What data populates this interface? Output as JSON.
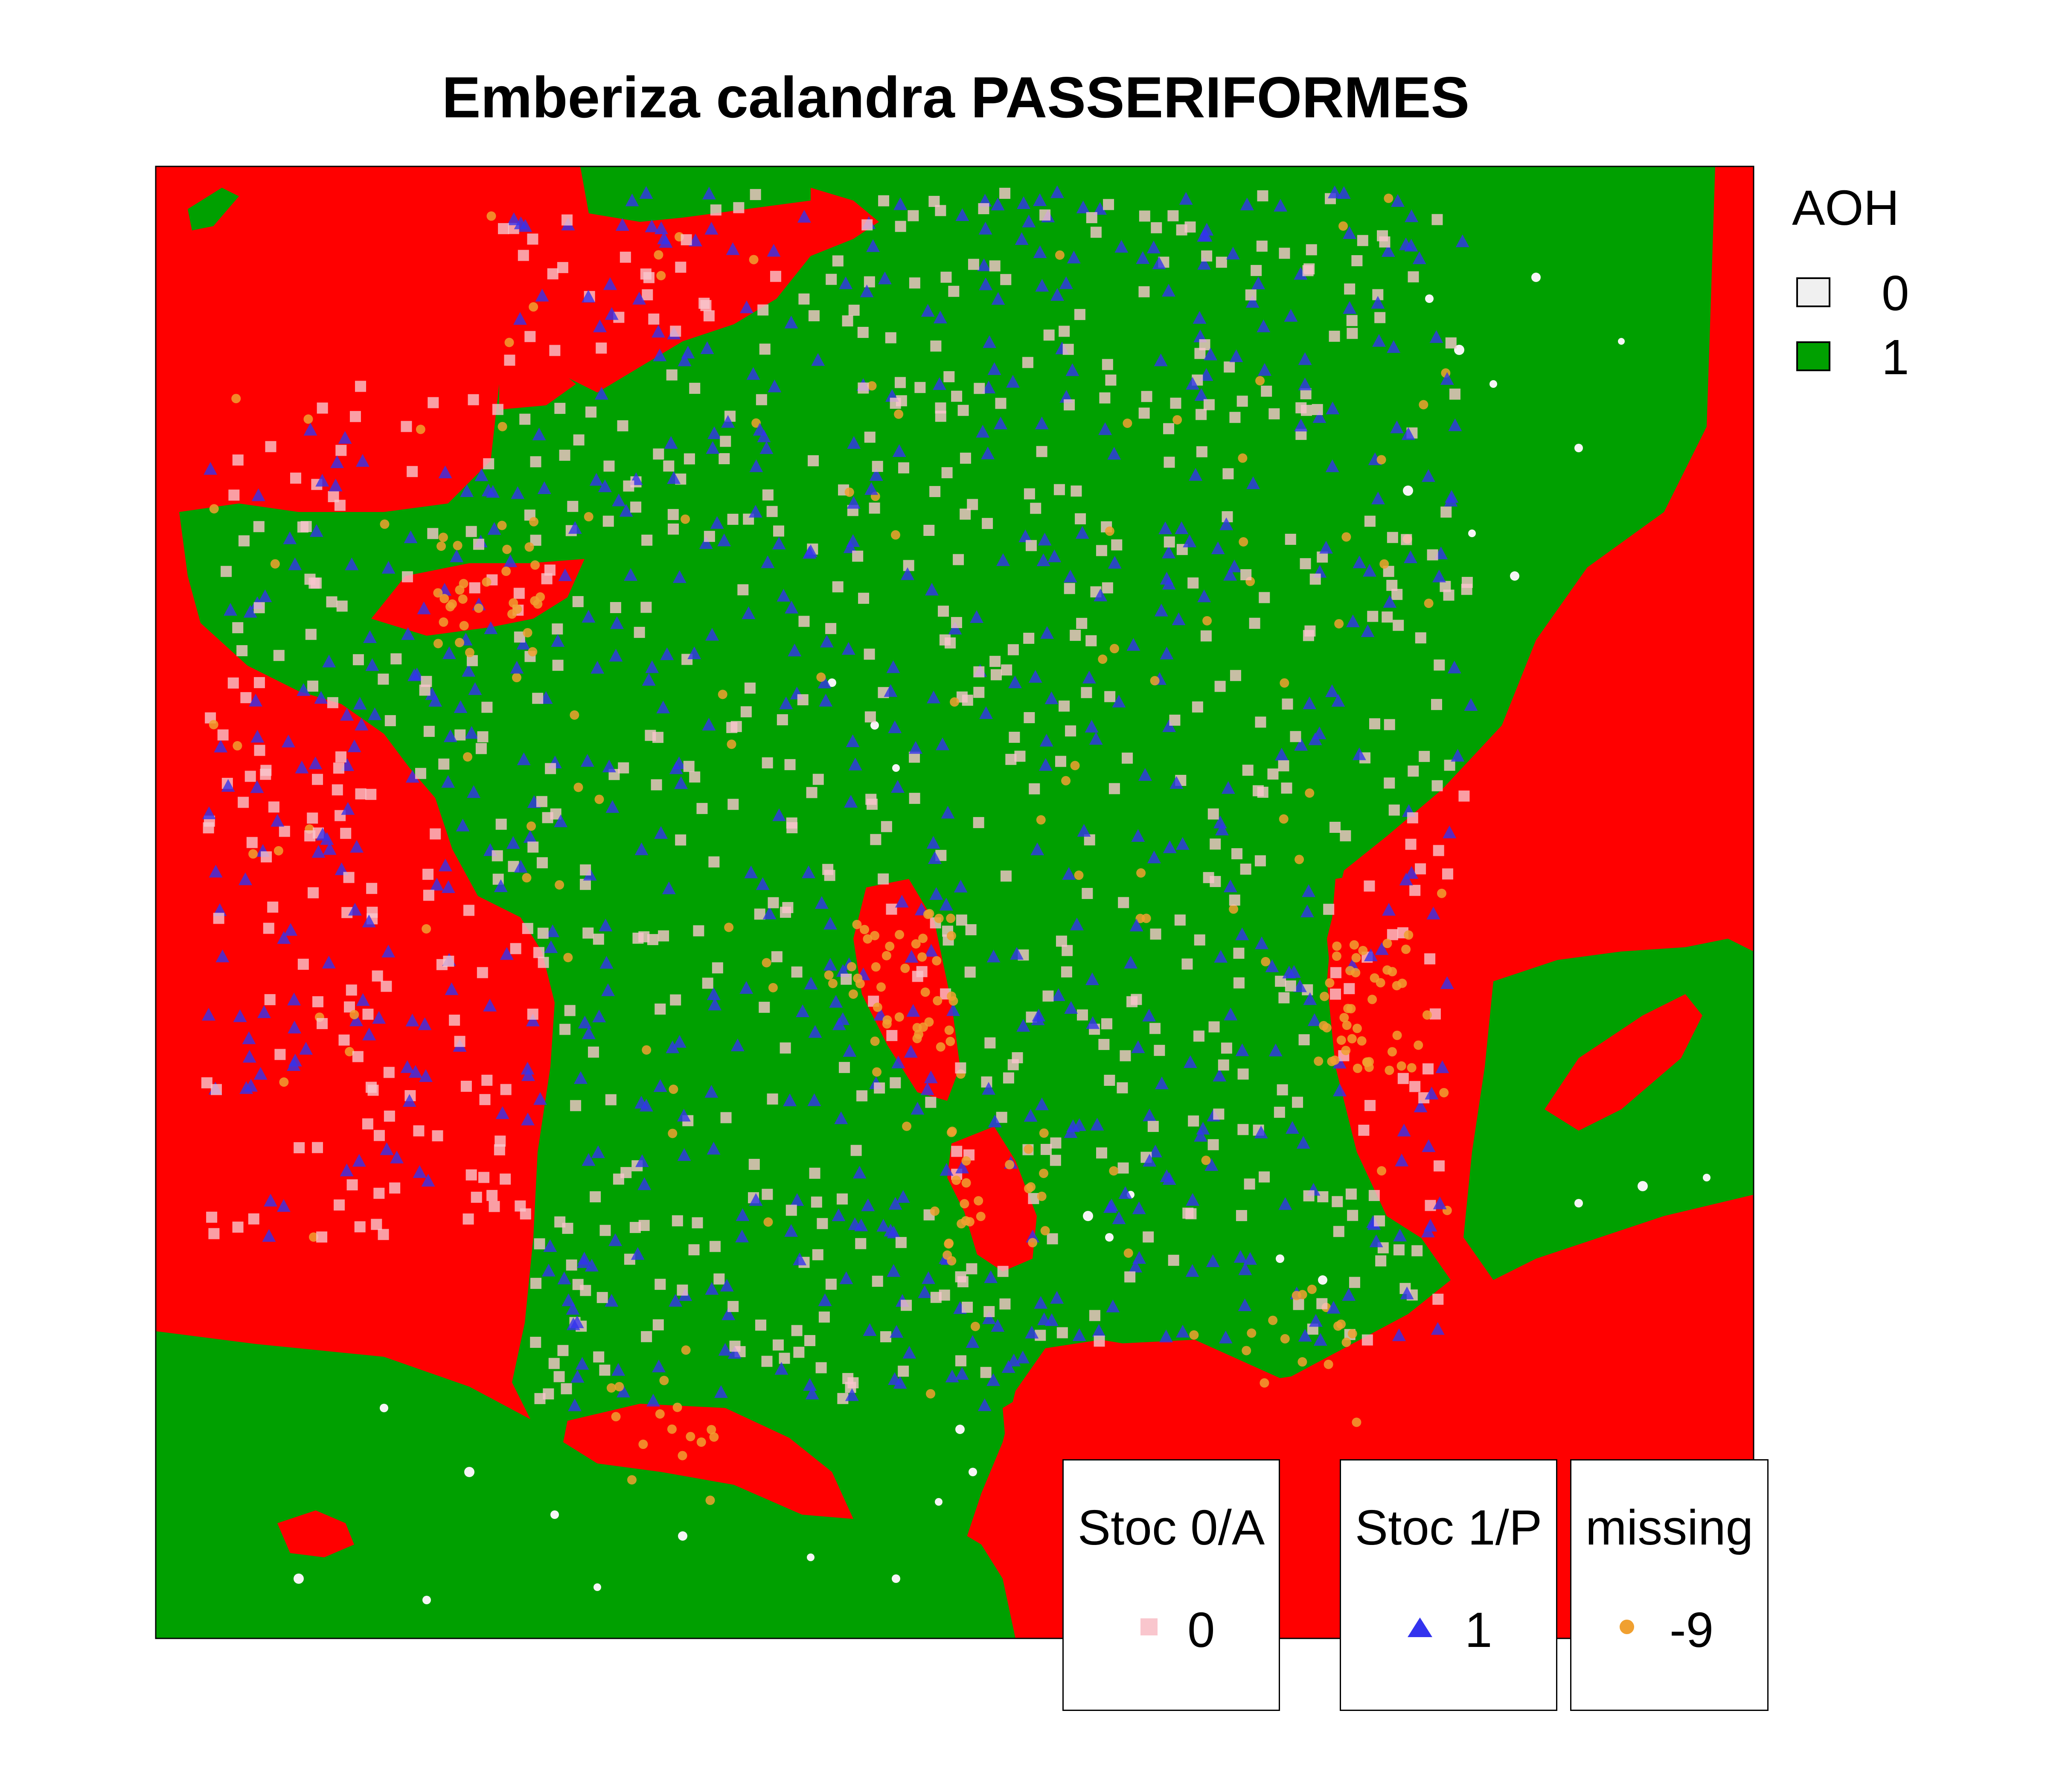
{
  "title": "Emberiza calandra PASSERIFORMES",
  "colors": {
    "sea": "#ff0000",
    "habitat": "#00a000",
    "nonhabitat": "#f5f5f5",
    "stoc0": "#f9c6cd",
    "stoc1": "#3333ee",
    "missing": "#f0a030",
    "border": "#000000"
  },
  "aoh_legend": {
    "title": "AOH",
    "items": [
      {
        "label": "0",
        "color": "#f0f0f0"
      },
      {
        "label": "1",
        "color": "#00a000"
      }
    ]
  },
  "point_legends": [
    {
      "title": "Stoc 0/A",
      "label": "0",
      "symbol": "square-icon",
      "color": "#f9c6cd"
    },
    {
      "title": "Stoc 1/P",
      "label": "1",
      "symbol": "triangle-icon",
      "color": "#3333ee"
    },
    {
      "title": "missing",
      "label": "-9",
      "symbol": "circle-icon",
      "color": "#f0a030"
    }
  ]
}
